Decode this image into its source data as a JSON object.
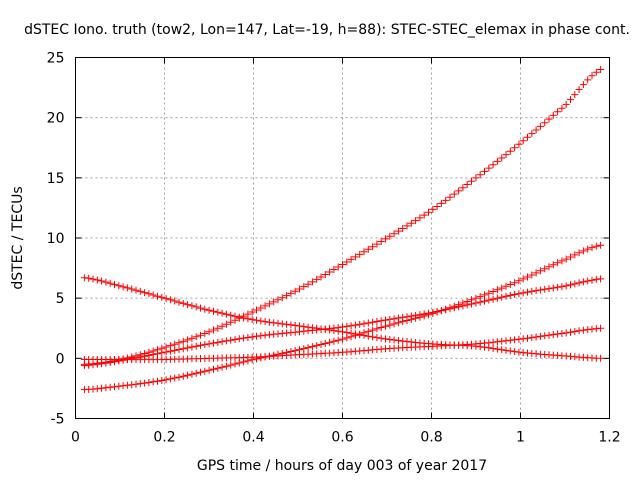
{
  "chart_data": {
    "type": "scatter",
    "title": "dSTEC Iono. truth (tow2, Lon=147, Lat=-19, h=88): STEC-STEC_elemax in phase cont.",
    "xlabel": "GPS time / hours of day 003 of year 2017",
    "ylabel": "dSTEC  / TECUs",
    "xlim": [
      0,
      1.2
    ],
    "ylim": [
      -5,
      25
    ],
    "xticks": [
      0,
      0.2,
      0.4,
      0.6,
      0.8,
      1,
      1.2
    ],
    "xtick_labels": [
      "0",
      "0.2",
      "0.4",
      "0.6",
      "0.8",
      "1",
      "1.2"
    ],
    "yticks": [
      -5,
      0,
      5,
      10,
      15,
      20,
      25
    ],
    "ytick_labels": [
      "-5",
      "0",
      "5",
      "10",
      "15",
      "20",
      "25"
    ],
    "grid": true,
    "legend": "none",
    "marker": "plus",
    "color": "#ff0000",
    "series": [
      {
        "x": [
          0.02,
          0.1,
          0.2,
          0.3,
          0.4,
          0.5,
          0.6,
          0.7,
          0.8,
          0.9,
          1.0,
          1.1,
          1.18
        ],
        "values": [
          -0.5,
          -0.1,
          0.9,
          2.2,
          3.9,
          5.7,
          7.8,
          10.0,
          12.3,
          15.0,
          17.9,
          21.0,
          24.0
        ]
      },
      {
        "x": [
          0.02,
          0.1,
          0.2,
          0.3,
          0.4,
          0.5,
          0.6,
          0.7,
          0.8,
          0.9,
          1.0,
          1.1,
          1.18
        ],
        "values": [
          -0.6,
          -0.2,
          0.5,
          1.2,
          1.8,
          2.2,
          2.6,
          3.2,
          3.8,
          4.6,
          5.4,
          6.0,
          6.6
        ]
      },
      {
        "x": [
          0.02,
          0.1,
          0.2,
          0.3,
          0.4,
          0.5,
          0.6,
          0.7,
          0.8,
          0.9,
          1.0,
          1.1,
          1.18
        ],
        "values": [
          -2.6,
          -2.3,
          -1.8,
          -1.0,
          -0.1,
          0.7,
          1.6,
          2.7,
          3.7,
          5.0,
          6.5,
          8.2,
          9.4
        ]
      },
      {
        "x": [
          0.02,
          0.1,
          0.2,
          0.3,
          0.4,
          0.5,
          0.6,
          0.7,
          0.8,
          0.9,
          1.0,
          1.1,
          1.18
        ],
        "values": [
          6.7,
          6.0,
          5.0,
          4.0,
          3.2,
          2.7,
          2.2,
          1.6,
          1.2,
          1.0,
          0.5,
          0.2,
          0.0
        ]
      },
      {
        "x": [
          0.02,
          0.1,
          0.2,
          0.3,
          0.4,
          0.5,
          0.6,
          0.7,
          0.8,
          0.9,
          1.0,
          1.1,
          1.18
        ],
        "values": [
          -0.1,
          -0.1,
          -0.1,
          0.0,
          0.1,
          0.3,
          0.5,
          0.8,
          1.0,
          1.2,
          1.6,
          2.1,
          2.5
        ]
      }
    ]
  }
}
